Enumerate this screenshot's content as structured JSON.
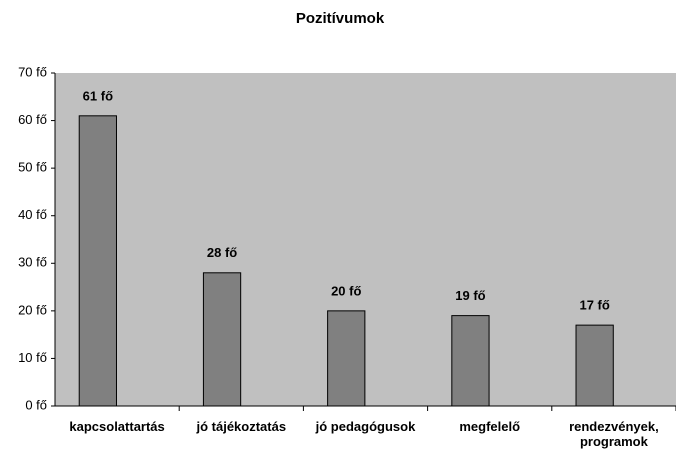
{
  "chart_data": {
    "type": "bar",
    "title": "Pozitívumok",
    "categories": [
      "kapcsolattartás",
      "jó tájékoztatás",
      "jó pedagógusok",
      "megfelelő",
      "rendezvények, programok"
    ],
    "values": [
      61,
      28,
      20,
      19,
      17
    ],
    "value_labels": [
      "61 fő",
      "28 fő",
      "20 fő",
      "19 fő",
      "17 fő"
    ],
    "color": "#808080",
    "ylim": [
      0,
      70
    ],
    "yticks": [
      {
        "value": 0,
        "label": "0 fő"
      },
      {
        "value": 10,
        "label": "10 fő"
      },
      {
        "value": 20,
        "label": "20 fő"
      },
      {
        "value": 30,
        "label": "30 fő"
      },
      {
        "value": 40,
        "label": "40 fő"
      },
      {
        "value": 50,
        "label": "50 fő"
      },
      {
        "value": 60,
        "label": "60 fő"
      },
      {
        "value": 70,
        "label": "70 fő"
      }
    ],
    "grid": false
  }
}
